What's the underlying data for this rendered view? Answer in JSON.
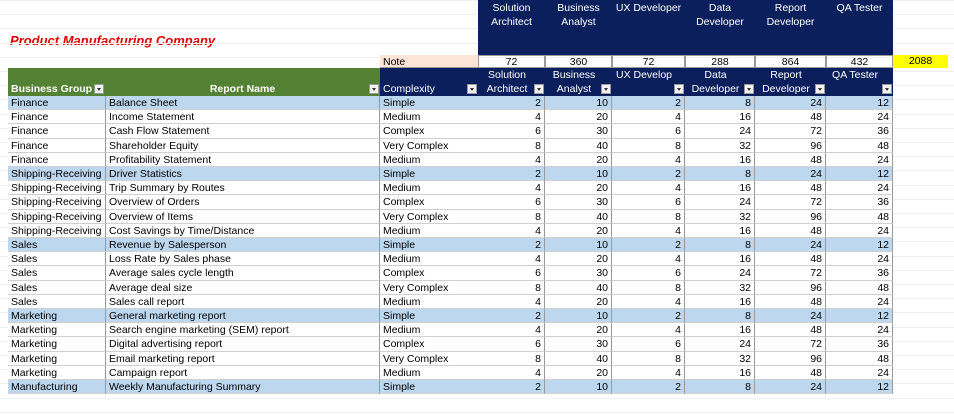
{
  "title": "Product Manufacturing Company",
  "top_header": [
    "Solution Architect",
    "Business Analyst",
    "UX Developer",
    "Data Developer",
    "Report Developer",
    "QA Tester"
  ],
  "note": {
    "label": "Note",
    "values": [
      72,
      360,
      72,
      288,
      864,
      432
    ],
    "total": 2088
  },
  "table": {
    "columns": [
      "Business Group",
      "Report Name",
      "Complexity",
      "Solution Architect",
      "Business Analyst",
      "UX Develop",
      "Data Developer",
      "Report Developer",
      "QA Tester"
    ],
    "rows": [
      [
        "Finance",
        "Balance Sheet",
        "Simple",
        2,
        10,
        2,
        8,
        24,
        12
      ],
      [
        "Finance",
        "Income Statement",
        "Medium",
        4,
        20,
        4,
        16,
        48,
        24
      ],
      [
        "Finance",
        "Cash Flow Statement",
        "Complex",
        6,
        30,
        6,
        24,
        72,
        36
      ],
      [
        "Finance",
        "Shareholder Equity",
        "Very Complex",
        8,
        40,
        8,
        32,
        96,
        48
      ],
      [
        "Finance",
        "Profitability Statement",
        "Medium",
        4,
        20,
        4,
        16,
        48,
        24
      ],
      [
        "Shipping-Receiving",
        "Driver Statistics",
        "Simple",
        2,
        10,
        2,
        8,
        24,
        12
      ],
      [
        "Shipping-Receiving",
        "Trip Summary by Routes",
        "Medium",
        4,
        20,
        4,
        16,
        48,
        24
      ],
      [
        "Shipping-Receiving",
        "Overview of Orders",
        "Complex",
        6,
        30,
        6,
        24,
        72,
        36
      ],
      [
        "Shipping-Receiving",
        "Overview of Items",
        "Very Complex",
        8,
        40,
        8,
        32,
        96,
        48
      ],
      [
        "Shipping-Receiving",
        "Cost Savings by Time/Distance",
        "Medium",
        4,
        20,
        4,
        16,
        48,
        24
      ],
      [
        "Sales",
        "Revenue by Salesperson",
        "Simple",
        2,
        10,
        2,
        8,
        24,
        12
      ],
      [
        "Sales",
        "Loss Rate by Sales phase",
        "Medium",
        4,
        20,
        4,
        16,
        48,
        24
      ],
      [
        "Sales",
        "Average sales cycle length",
        "Complex",
        6,
        30,
        6,
        24,
        72,
        36
      ],
      [
        "Sales",
        "Average deal size",
        "Very Complex",
        8,
        40,
        8,
        32,
        96,
        48
      ],
      [
        "Sales",
        "Sales call report",
        "Medium",
        4,
        20,
        4,
        16,
        48,
        24
      ],
      [
        "Marketing",
        "General marketing report",
        "Simple",
        2,
        10,
        2,
        8,
        24,
        12
      ],
      [
        "Marketing",
        "Search engine marketing (SEM) report",
        "Medium",
        4,
        20,
        4,
        16,
        48,
        24
      ],
      [
        "Marketing",
        "Digital advertising report",
        "Complex",
        6,
        30,
        6,
        24,
        72,
        36
      ],
      [
        "Marketing",
        "Email marketing report",
        "Very Complex",
        8,
        40,
        8,
        32,
        96,
        48
      ],
      [
        "Marketing",
        "Campaign report",
        "Medium",
        4,
        20,
        4,
        16,
        48,
        24
      ],
      [
        "Manufacturing",
        "Weekly Manufacturing Summary",
        "Simple",
        2,
        10,
        2,
        8,
        24,
        12
      ]
    ]
  }
}
